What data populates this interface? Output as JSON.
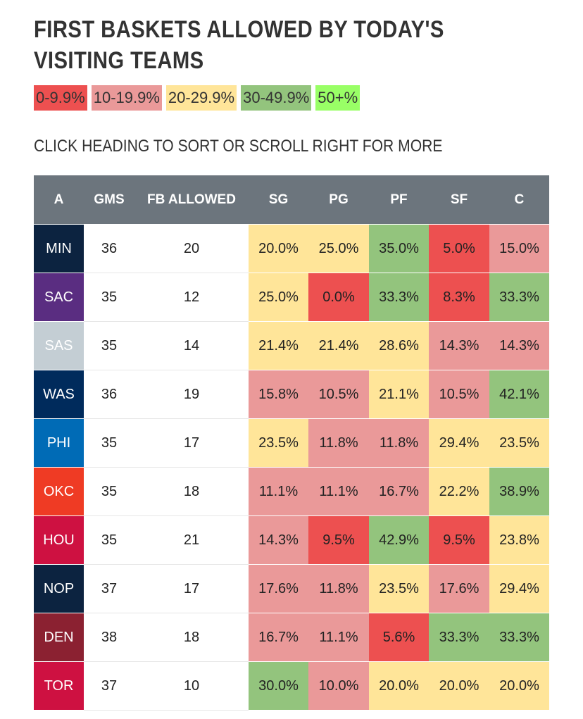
{
  "title": "FIRST BASKETS ALLOWED BY TODAY'S VISITING TEAMS",
  "legend": [
    {
      "label": "0-9.9%",
      "color": "#ed5050"
    },
    {
      "label": "10-19.9%",
      "color": "#ea9999"
    },
    {
      "label": "20-29.9%",
      "color": "#ffe599"
    },
    {
      "label": "30-49.9%",
      "color": "#93c47d"
    },
    {
      "label": "50+%",
      "color": "#99ff66"
    }
  ],
  "hint": "CLICK HEADING TO SORT OR SCROLL RIGHT FOR MORE",
  "table": {
    "header_bg": "#6c757d",
    "columns": [
      "A",
      "GMS",
      "FB ALLOWED",
      "SG",
      "PG",
      "PF",
      "SF",
      "C"
    ],
    "rows": [
      {
        "team": "MIN",
        "team_color": "#0c2340",
        "gms": "36",
        "fb": "20",
        "sg": "20.0%",
        "pg": "25.0%",
        "pf": "35.0%",
        "sf": "5.0%",
        "c": "15.0%"
      },
      {
        "team": "SAC",
        "team_color": "#5a2d81",
        "gms": "35",
        "fb": "12",
        "sg": "25.0%",
        "pg": "0.0%",
        "pf": "33.3%",
        "sf": "8.3%",
        "c": "33.3%"
      },
      {
        "team": "SAS",
        "team_color": "#c4ced4",
        "gms": "35",
        "fb": "14",
        "sg": "21.4%",
        "pg": "21.4%",
        "pf": "28.6%",
        "sf": "14.3%",
        "c": "14.3%"
      },
      {
        "team": "WAS",
        "team_color": "#002b5c",
        "gms": "36",
        "fb": "19",
        "sg": "15.8%",
        "pg": "10.5%",
        "pf": "21.1%",
        "sf": "10.5%",
        "c": "42.1%"
      },
      {
        "team": "PHI",
        "team_color": "#006bb6",
        "gms": "35",
        "fb": "17",
        "sg": "23.5%",
        "pg": "11.8%",
        "pf": "11.8%",
        "sf": "29.4%",
        "c": "23.5%"
      },
      {
        "team": "OKC",
        "team_color": "#ef3b24",
        "gms": "35",
        "fb": "18",
        "sg": "11.1%",
        "pg": "11.1%",
        "pf": "16.7%",
        "sf": "22.2%",
        "c": "38.9%"
      },
      {
        "team": "HOU",
        "team_color": "#ce1141",
        "gms": "35",
        "fb": "21",
        "sg": "14.3%",
        "pg": "9.5%",
        "pf": "42.9%",
        "sf": "9.5%",
        "c": "23.8%"
      },
      {
        "team": "NOP",
        "team_color": "#0c2340",
        "gms": "37",
        "fb": "17",
        "sg": "17.6%",
        "pg": "11.8%",
        "pf": "23.5%",
        "sf": "17.6%",
        "c": "29.4%"
      },
      {
        "team": "DEN",
        "team_color": "#8b2131",
        "gms": "38",
        "fb": "18",
        "sg": "16.7%",
        "pg": "11.1%",
        "pf": "5.6%",
        "sf": "33.3%",
        "c": "33.3%"
      },
      {
        "team": "TOR",
        "team_color": "#ce1141",
        "gms": "37",
        "fb": "10",
        "sg": "30.0%",
        "pg": "10.0%",
        "pf": "20.0%",
        "sf": "20.0%",
        "c": "20.0%"
      }
    ]
  }
}
